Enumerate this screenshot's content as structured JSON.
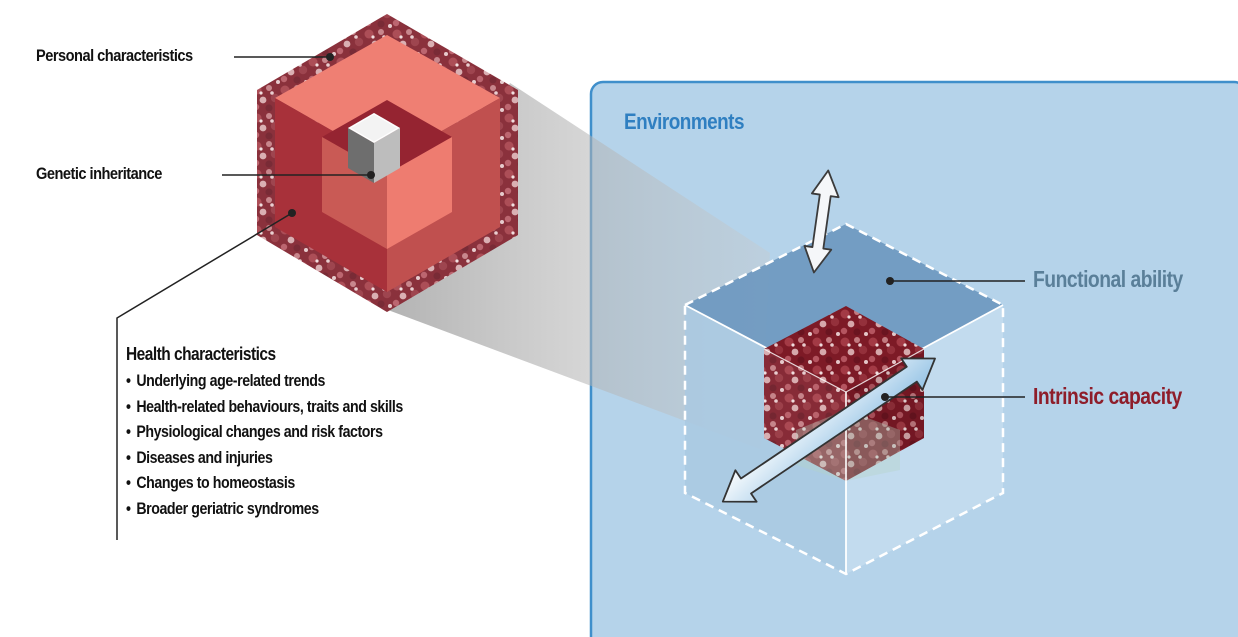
{
  "labels": {
    "personal": "Personal characteristics",
    "genetic": "Genetic inheritance",
    "environments": "Environments",
    "functional": "Functional ability",
    "intrinsic": "Intrinsic capacity"
  },
  "health": {
    "title": "Health characteristics",
    "items": [
      "Underlying age-related trends",
      "Health-related behaviours, traits and skills",
      "Physiological changes and risk factors",
      "Diseases and injuries",
      "Changes to homeostasis",
      "Broader geriatric syndromes"
    ]
  },
  "colors": {
    "environment_panel": "#b5d3ea",
    "environment_border": "#3f8fcb",
    "functional_cube": "#5f8db6",
    "intrinsic_cube": "#8e1d2a",
    "hex_salmon": "#ef7f73",
    "hex_dark_red": "#a8313a"
  }
}
